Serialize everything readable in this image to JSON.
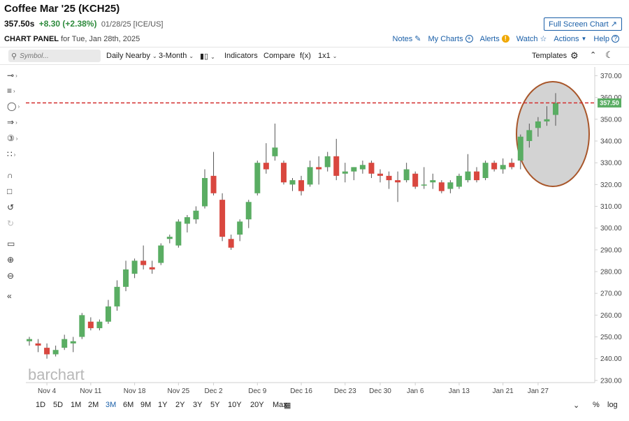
{
  "header": {
    "title": "Coffee Mar '25 (KCH25)",
    "price": "357.50s",
    "change": "+8.30 (+2.38%)",
    "meta": "01/28/25 [ICE/US]",
    "fullscreen_label": "Full Screen Chart",
    "panel_label": "CHART PANEL",
    "panel_date": "for Tue, Jan 28th, 2025"
  },
  "top_links": {
    "notes": "Notes",
    "my_charts": "My Charts",
    "alerts": "Alerts",
    "watch": "Watch",
    "actions": "Actions",
    "help": "Help"
  },
  "toolbar": {
    "search_placeholder": "Symbol...",
    "aggregation": "Daily Nearby",
    "period": "3-Month",
    "chart_type_icon": "candlestick-icon",
    "indicators": "Indicators",
    "compare": "Compare",
    "fx": "f(x)",
    "layout": "1x1",
    "templates": "Templates"
  },
  "brand": "barchart",
  "price_label": "357.50",
  "range_buttons": [
    "1D",
    "5D",
    "1M",
    "2M",
    "3M",
    "6M",
    "9M",
    "1Y",
    "2Y",
    "3Y",
    "5Y",
    "10Y",
    "20Y",
    "Max"
  ],
  "active_range": "3M",
  "bottom_right": {
    "percent": "%",
    "log": "log"
  },
  "colors": {
    "up": "#5aad63",
    "down": "#d9473f",
    "accent": "#1a5fa8",
    "highlight": "#a8562a",
    "last_price_line": "#d32f2f"
  },
  "chart_data": {
    "type": "candlestick",
    "yticks": [
      230,
      240,
      250,
      260,
      270,
      280,
      290,
      300,
      310,
      320,
      330,
      340,
      350,
      360,
      370
    ],
    "ylim": [
      229,
      374
    ],
    "last_price": 357.5,
    "xticks": [
      {
        "label": "Nov 4",
        "index": 2
      },
      {
        "label": "Nov 11",
        "index": 7
      },
      {
        "label": "Nov 18",
        "index": 12
      },
      {
        "label": "Nov 25",
        "index": 17
      },
      {
        "label": "Dec 2",
        "index": 21
      },
      {
        "label": "Dec 9",
        "index": 26
      },
      {
        "label": "Dec 16",
        "index": 31
      },
      {
        "label": "Dec 23",
        "index": 36
      },
      {
        "label": "Dec 30",
        "index": 40
      },
      {
        "label": "Jan 6",
        "index": 44
      },
      {
        "label": "Jan 13",
        "index": 49
      },
      {
        "label": "Jan 21",
        "index": 54
      },
      {
        "label": "Jan 27",
        "index": 58
      }
    ],
    "candles": [
      {
        "o": 248,
        "h": 250,
        "l": 246,
        "c": 249
      },
      {
        "o": 247,
        "h": 249,
        "l": 243,
        "c": 246
      },
      {
        "o": 245,
        "h": 247,
        "l": 240,
        "c": 242
      },
      {
        "o": 242,
        "h": 246,
        "l": 241,
        "c": 244
      },
      {
        "o": 245,
        "h": 251,
        "l": 244,
        "c": 249
      },
      {
        "o": 247,
        "h": 250,
        "l": 243,
        "c": 248
      },
      {
        "o": 250,
        "h": 261,
        "l": 249,
        "c": 260
      },
      {
        "o": 257,
        "h": 259,
        "l": 253,
        "c": 254
      },
      {
        "o": 254,
        "h": 258,
        "l": 253,
        "c": 257
      },
      {
        "o": 257,
        "h": 267,
        "l": 256,
        "c": 264
      },
      {
        "o": 264,
        "h": 276,
        "l": 262,
        "c": 273
      },
      {
        "o": 273,
        "h": 285,
        "l": 271,
        "c": 281
      },
      {
        "o": 279,
        "h": 286,
        "l": 277,
        "c": 285
      },
      {
        "o": 285,
        "h": 292,
        "l": 281,
        "c": 283
      },
      {
        "o": 282,
        "h": 285,
        "l": 279,
        "c": 281
      },
      {
        "o": 284,
        "h": 293,
        "l": 283,
        "c": 292
      },
      {
        "o": 295,
        "h": 297,
        "l": 293,
        "c": 296
      },
      {
        "o": 292,
        "h": 304,
        "l": 291,
        "c": 303
      },
      {
        "o": 302,
        "h": 306,
        "l": 298,
        "c": 305
      },
      {
        "o": 304,
        "h": 310,
        "l": 302,
        "c": 308
      },
      {
        "o": 310,
        "h": 327,
        "l": 309,
        "c": 323
      },
      {
        "o": 324,
        "h": 335,
        "l": 315,
        "c": 316
      },
      {
        "o": 313,
        "h": 316,
        "l": 294,
        "c": 296
      },
      {
        "o": 295,
        "h": 297,
        "l": 290,
        "c": 291
      },
      {
        "o": 297,
        "h": 304,
        "l": 294,
        "c": 303
      },
      {
        "o": 304,
        "h": 313,
        "l": 300,
        "c": 312
      },
      {
        "o": 316,
        "h": 331,
        "l": 315,
        "c": 330
      },
      {
        "o": 330,
        "h": 339,
        "l": 325,
        "c": 327
      },
      {
        "o": 333,
        "h": 348,
        "l": 331,
        "c": 337
      },
      {
        "o": 330,
        "h": 331,
        "l": 320,
        "c": 321
      },
      {
        "o": 320,
        "h": 323,
        "l": 317,
        "c": 322
      },
      {
        "o": 322,
        "h": 324,
        "l": 315,
        "c": 317
      },
      {
        "o": 320,
        "h": 331,
        "l": 319,
        "c": 328
      },
      {
        "o": 328,
        "h": 333,
        "l": 320,
        "c": 327
      },
      {
        "o": 328,
        "h": 335,
        "l": 326,
        "c": 333
      },
      {
        "o": 333,
        "h": 341,
        "l": 322,
        "c": 324
      },
      {
        "o": 325,
        "h": 330,
        "l": 321,
        "c": 326
      },
      {
        "o": 326,
        "h": 328,
        "l": 322,
        "c": 328
      },
      {
        "o": 327,
        "h": 331,
        "l": 325,
        "c": 329
      },
      {
        "o": 330,
        "h": 331,
        "l": 323,
        "c": 325
      },
      {
        "o": 325,
        "h": 327,
        "l": 321,
        "c": 324
      },
      {
        "o": 324,
        "h": 326,
        "l": 318,
        "c": 322
      },
      {
        "o": 322,
        "h": 326,
        "l": 312,
        "c": 321
      },
      {
        "o": 322,
        "h": 330,
        "l": 321,
        "c": 327
      },
      {
        "o": 325,
        "h": 326,
        "l": 318,
        "c": 319
      },
      {
        "o": 320,
        "h": 328,
        "l": 318,
        "c": 320
      },
      {
        "o": 321,
        "h": 325,
        "l": 318,
        "c": 322
      },
      {
        "o": 321,
        "h": 322,
        "l": 316,
        "c": 317
      },
      {
        "o": 318,
        "h": 322,
        "l": 316,
        "c": 321
      },
      {
        "o": 319,
        "h": 325,
        "l": 318,
        "c": 324
      },
      {
        "o": 322,
        "h": 334,
        "l": 321,
        "c": 326
      },
      {
        "o": 326,
        "h": 328,
        "l": 321,
        "c": 322
      },
      {
        "o": 323,
        "h": 331,
        "l": 322,
        "c": 330
      },
      {
        "o": 330,
        "h": 331,
        "l": 326,
        "c": 327
      },
      {
        "o": 327,
        "h": 332,
        "l": 325,
        "c": 329
      },
      {
        "o": 330,
        "h": 332,
        "l": 327,
        "c": 328
      },
      {
        "o": 331,
        "h": 343,
        "l": 327,
        "c": 342
      },
      {
        "o": 340,
        "h": 348,
        "l": 337,
        "c": 345
      },
      {
        "o": 346,
        "h": 351,
        "l": 342,
        "c": 349
      },
      {
        "o": 349,
        "h": 356,
        "l": 347,
        "c": 350
      },
      {
        "o": 352,
        "h": 362,
        "l": 347,
        "c": 357.5
      }
    ],
    "annotations": [
      {
        "type": "ellipse",
        "color": "#a8562a",
        "fill": "#d3d3d3"
      },
      {
        "type": "hline",
        "value": 357.5,
        "style": "dashed",
        "color": "#d32f2f"
      }
    ]
  }
}
